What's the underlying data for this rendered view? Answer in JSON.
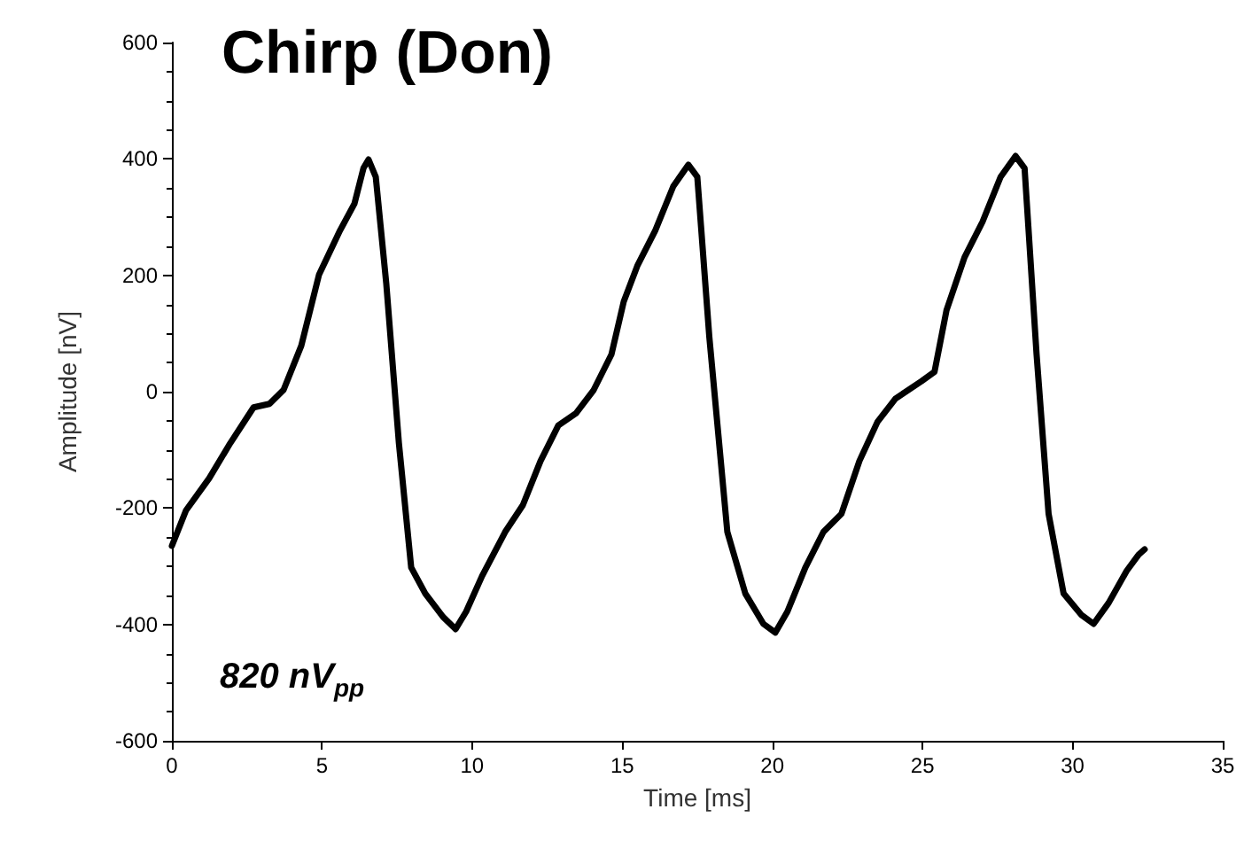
{
  "chart_data": {
    "type": "line",
    "title": "Chirp (Don)",
    "xlabel": "Time [ms]",
    "ylabel": "Amplitude [nV]",
    "annotations": [
      "820 nV$_{pp}$"
    ],
    "x": [
      0,
      0.47,
      1.24,
      1.95,
      2.72,
      3.25,
      3.72,
      4.31,
      4.9,
      5.6,
      6.08,
      6.38,
      6.55,
      6.79,
      7.14,
      7.56,
      7.97,
      8.44,
      9.03,
      9.45,
      9.8,
      10.33,
      11.1,
      11.69,
      12.28,
      12.87,
      13.46,
      14.05,
      14.64,
      15.05,
      15.5,
      16.1,
      16.7,
      17.2,
      17.5,
      17.9,
      18.5,
      19.1,
      19.7,
      20.1,
      20.5,
      21.1,
      21.7,
      22.3,
      22.9,
      23.5,
      24.1,
      24.97,
      25.4,
      25.8,
      26.4,
      27.0,
      27.6,
      28.1,
      28.4,
      28.8,
      29.2,
      29.7,
      30.3,
      30.7,
      31.2,
      31.8,
      32.2,
      32.4
    ],
    "series": [
      {
        "color": "#000000",
        "values": [
          -265,
          -204,
          -149,
          -88,
          -27,
          -21,
          3,
          79,
          201,
          277,
          323,
          384,
          399,
          369,
          186,
          -88,
          -302,
          -347,
          -387,
          -408,
          -378,
          -317,
          -241,
          -195,
          -119,
          -58,
          -37,
          3,
          64,
          155,
          216,
          277,
          353,
          390,
          369,
          94,
          -241,
          -347,
          -399,
          -414,
          -378,
          -302,
          -241,
          -210,
          -119,
          -52,
          -12,
          18,
          34,
          140,
          231,
          292,
          369,
          405,
          384,
          64,
          -210,
          -347,
          -384,
          -399,
          -363,
          -308,
          -280,
          -271
        ]
      }
    ],
    "xlim": [
      0,
      35
    ],
    "xticks": [
      0,
      5,
      10,
      15,
      20,
      25,
      30,
      35
    ],
    "ylim": [
      -600,
      600
    ],
    "yticks": [
      -600,
      -400,
      -200,
      0,
      200,
      400,
      600
    ],
    "grid": false,
    "marker": "none",
    "line_style": "solid"
  }
}
